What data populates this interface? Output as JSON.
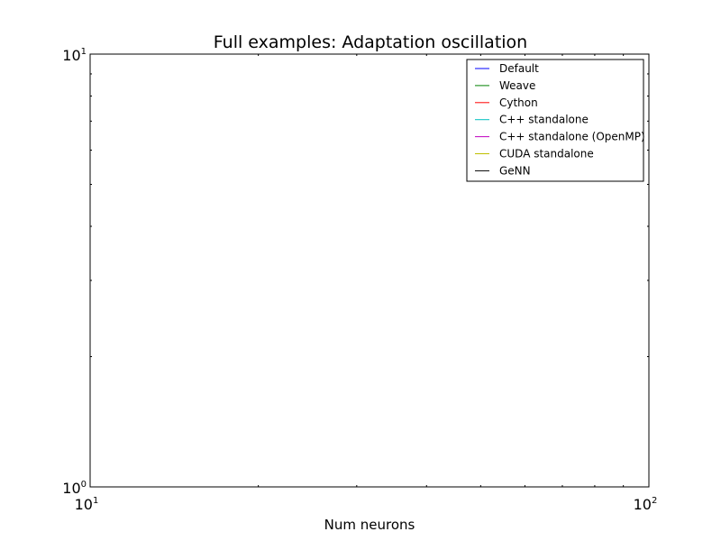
{
  "chart_data": {
    "type": "line",
    "title": "Full examples: Adaptation oscillation",
    "xlabel": "Num neurons",
    "ylabel": "",
    "xscale": "log",
    "yscale": "log",
    "xlim": [
      10,
      100
    ],
    "ylim": [
      1,
      10
    ],
    "xticks": [
      {
        "base": "10",
        "exp": "1"
      },
      {
        "base": "10",
        "exp": "2"
      }
    ],
    "yticks": [
      {
        "base": "10",
        "exp": "0"
      },
      {
        "base": "10",
        "exp": "1"
      }
    ],
    "grid": false,
    "legend_position": "top-right",
    "series": [
      {
        "name": "Default",
        "color": "#0000ff",
        "x": [],
        "y": []
      },
      {
        "name": "Weave",
        "color": "#008000",
        "x": [],
        "y": []
      },
      {
        "name": "Cython",
        "color": "#ff0000",
        "x": [],
        "y": []
      },
      {
        "name": "C++ standalone",
        "color": "#00bfbf",
        "x": [],
        "y": []
      },
      {
        "name": "C++ standalone (OpenMP)",
        "color": "#bf00bf",
        "x": [],
        "y": []
      },
      {
        "name": "CUDA standalone",
        "color": "#bfbf00",
        "x": [],
        "y": []
      },
      {
        "name": "GeNN",
        "color": "#000000",
        "x": [],
        "y": []
      }
    ]
  }
}
